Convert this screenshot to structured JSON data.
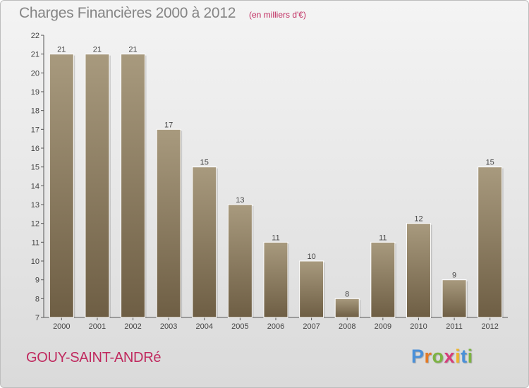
{
  "chart_data": {
    "type": "bar",
    "title": "Charges Financières 2000 à 2012",
    "subtitle": "(en milliers d'€)",
    "categories": [
      "2000",
      "2001",
      "2002",
      "2003",
      "2004",
      "2005",
      "2006",
      "2007",
      "2008",
      "2009",
      "2010",
      "2011",
      "2012"
    ],
    "values": [
      21,
      21,
      21,
      17,
      15,
      13,
      11,
      10,
      8,
      11,
      12,
      9,
      15
    ],
    "ylim": [
      7,
      22
    ],
    "yticks": [
      7,
      8,
      9,
      10,
      11,
      12,
      13,
      14,
      15,
      16,
      17,
      18,
      19,
      20,
      21,
      22
    ],
    "grid": false,
    "bar_color_light": "#a89a7e",
    "bar_color_dark": "#6e5e44"
  },
  "footer": {
    "commune": "GOUY-SAINT-ANDRé"
  },
  "brand": {
    "letters": [
      "P",
      "r",
      "o",
      "x",
      "i",
      "t",
      "i"
    ],
    "colors": [
      "#4a90d9",
      "#e57a24",
      "#7cb342",
      "#d73c7a",
      "#f0b429",
      "#4a90d9",
      "#7cb342"
    ]
  }
}
